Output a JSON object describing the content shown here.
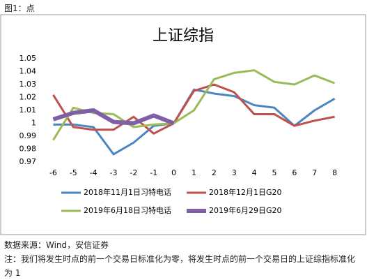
{
  "figure_label": "图1：点",
  "chart_data": {
    "type": "line",
    "title": "上证综指",
    "x": [
      -6,
      -5,
      -4,
      -3,
      -2,
      -1,
      0,
      1,
      2,
      3,
      4,
      5,
      6,
      7,
      8
    ],
    "xlim": [
      -6.5,
      8.5
    ],
    "xticks": [
      -6,
      -5,
      -4,
      -3,
      -2,
      -1,
      0,
      1,
      2,
      3,
      4,
      5,
      6,
      7,
      8
    ],
    "ylim": [
      0.97,
      1.05
    ],
    "yticks": [
      0.97,
      0.98,
      0.99,
      1,
      1.01,
      1.02,
      1.03,
      1.04,
      1.05
    ],
    "grid": false,
    "series": [
      {
        "name": "2018年11月1日习特电话",
        "color": "#4a86c0",
        "width": 3,
        "values": [
          0.999,
          0.999,
          0.997,
          0.976,
          0.985,
          0.998,
          1.0,
          1.026,
          1.023,
          1.021,
          1.014,
          1.012,
          0.998,
          1.01,
          1.019
        ]
      },
      {
        "name": "2018年12月1日G20",
        "color": "#c0504d",
        "width": 3,
        "values": [
          1.022,
          0.997,
          0.995,
          0.995,
          1.005,
          0.992,
          1.0,
          1.025,
          1.03,
          1.024,
          1.007,
          1.007,
          0.998,
          1.002,
          1.005
        ]
      },
      {
        "name": "2019年6月18日习特电话",
        "color": "#9bbb59",
        "width": 3,
        "values": [
          0.987,
          1.012,
          1.008,
          1.007,
          0.997,
          0.999,
          1.0,
          1.01,
          1.034,
          1.039,
          1.041,
          1.032,
          1.03,
          1.037,
          1.031
        ]
      },
      {
        "name": "2019年6月29日G20",
        "color": "#7f5fa6",
        "width": 6,
        "values": [
          1.003,
          1.008,
          1.01,
          1.001,
          1.0,
          1.006,
          1.0,
          null,
          null,
          null,
          null,
          null,
          null,
          null,
          null
        ]
      }
    ]
  },
  "source": "数据来源：Wind，安信证券",
  "note": "注：我们将发生时点的前一个交易日标准化为零，将发生时点的前一个交易日的上证综指标准化为 1"
}
